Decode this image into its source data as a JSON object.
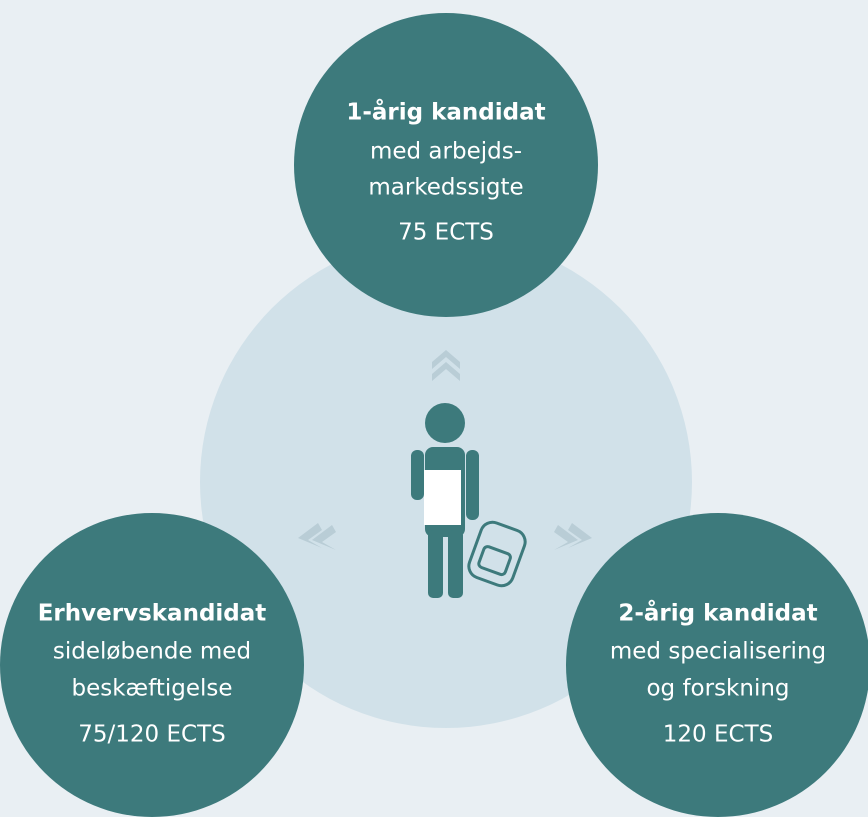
{
  "nodes": [
    {
      "title": "1-årig kandidat",
      "lines": [
        "med arbejds-",
        "markedssigte"
      ],
      "ects": "75 ECTS"
    },
    {
      "title": "Erhvervskandidat",
      "lines": [
        "sideløbende med",
        "beskæftigelse"
      ],
      "ects": "75/120 ECTS"
    },
    {
      "title": "2-årig kandidat",
      "lines": [
        "med specialisering",
        "og forskning"
      ],
      "ects": "120 ECTS"
    }
  ]
}
